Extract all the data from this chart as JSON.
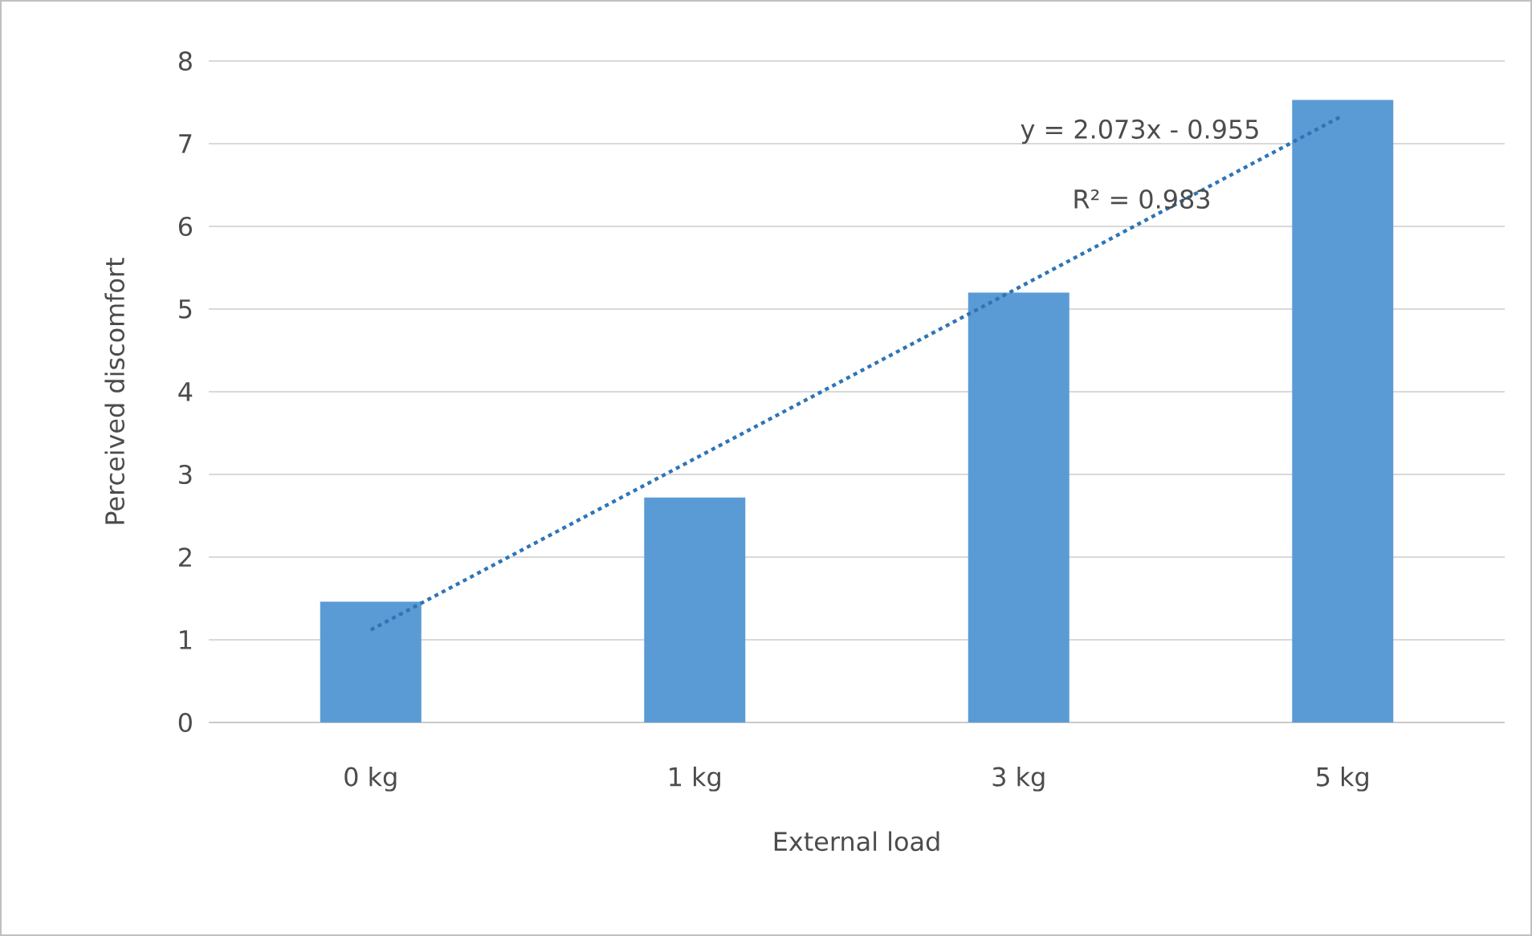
{
  "chart_data": {
    "type": "bar",
    "xlabel": "External load",
    "ylabel": "Perceived discomfort",
    "categories": [
      "0 kg",
      "1 kg",
      "3 kg",
      "5 kg"
    ],
    "series": [
      {
        "color": "#5b9bd5",
        "values": [
          1.46,
          2.72,
          5.2,
          7.53
        ]
      },
      {
        "type": "line",
        "color": "#2e75b6",
        "line_style": "dotted",
        "values": [
          1.12,
          3.19,
          5.26,
          7.34
        ]
      }
    ],
    "ylim": [
      0,
      8
    ],
    "yticks": [
      0,
      1,
      2,
      3,
      4,
      5,
      6,
      7,
      8
    ],
    "grid": "y",
    "annotations": [
      "y = 2.073x - 0.955",
      "R² = 0.983"
    ]
  }
}
